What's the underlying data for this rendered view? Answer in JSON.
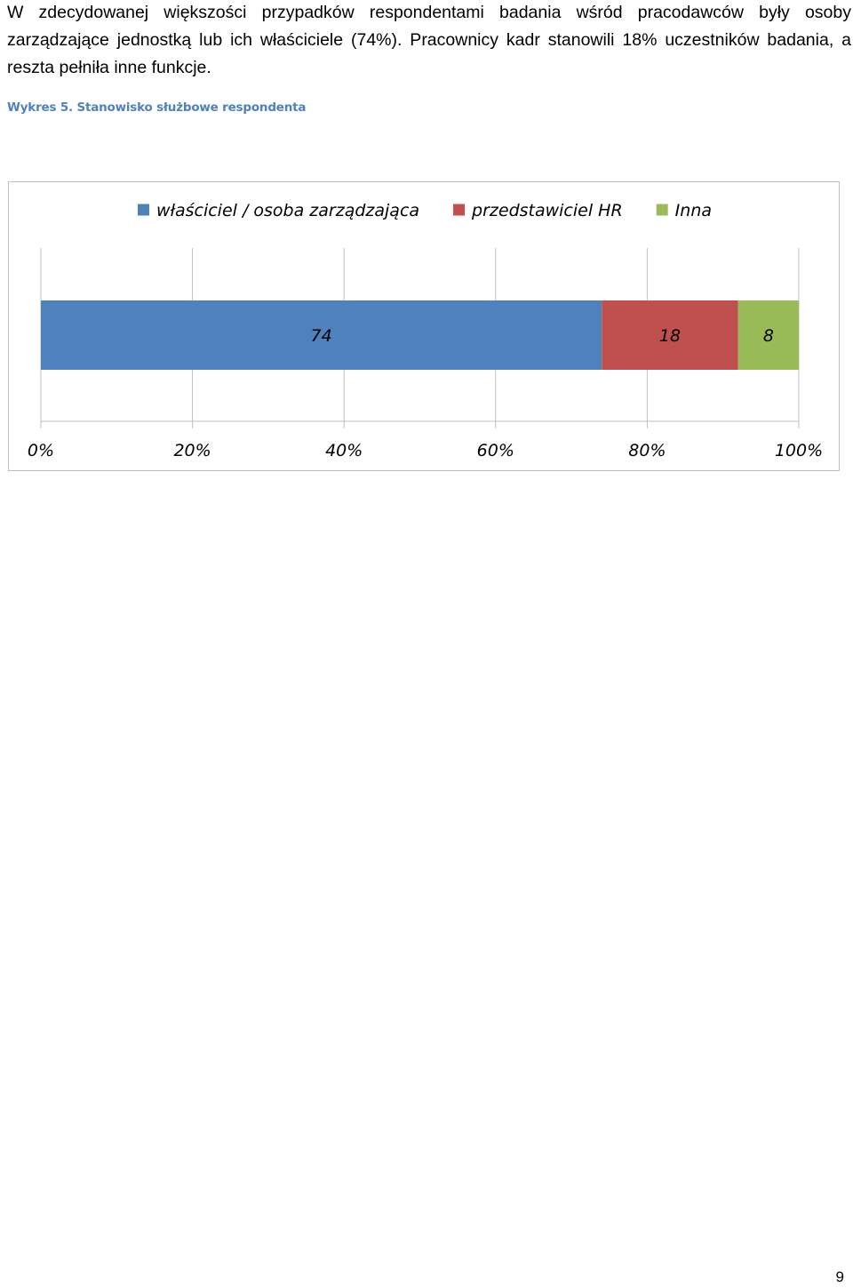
{
  "document": {
    "paragraph": "W zdecydowanej większości przypadków respondentami badania wśród pracodawców były osoby zarządzające jednostką lub ich właściciele (74%). Pracownicy kadr stanowili 18% uczestników badania, a reszta pełniła inne funkcje.",
    "caption": "Wykres 5. Stanowisko służbowe respondenta",
    "page_number": "9"
  },
  "chart_data": {
    "type": "bar",
    "orientation": "horizontal",
    "stacked": "percent",
    "categories": [
      ""
    ],
    "series": [
      {
        "name": "właściciel / osoba zarządzająca",
        "values": [
          74
        ],
        "color": "#4f81bd",
        "label": "74"
      },
      {
        "name": "przedstawiciel HR",
        "values": [
          18
        ],
        "color": "#c0504d",
        "label": "18"
      },
      {
        "name": "Inna",
        "values": [
          8
        ],
        "color": "#9bbb59",
        "label": "8"
      }
    ],
    "xlim": [
      0,
      100
    ],
    "x_ticks": [
      "0%",
      "20%",
      "40%",
      "60%",
      "80%",
      "100%"
    ],
    "x_tick_values": [
      0,
      20,
      40,
      60,
      80,
      100
    ],
    "grid": true,
    "legend": "top"
  }
}
